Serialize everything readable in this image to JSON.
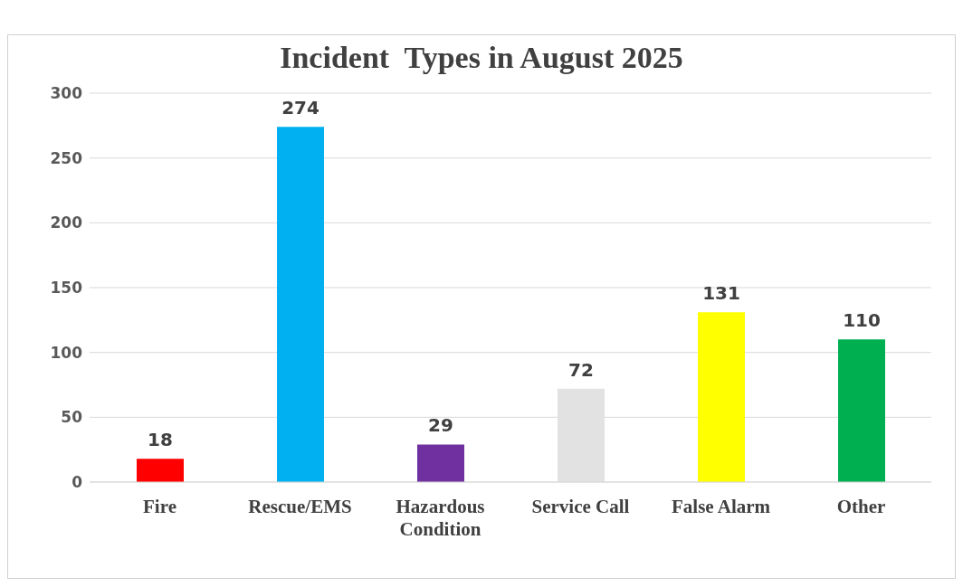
{
  "chart_data": {
    "type": "bar",
    "title": "Incident  Types in August 2025",
    "categories": [
      "Fire",
      "Rescue/EMS",
      "Hazardous Condition",
      "Service Call",
      "False Alarm",
      "Other"
    ],
    "values": [
      18,
      274,
      29,
      72,
      131,
      110
    ],
    "colors": [
      "#ff0000",
      "#00b0f0",
      "#7030a0",
      "#e2e2e2",
      "#ffff00",
      "#00b050"
    ],
    "ylim": [
      0,
      300
    ],
    "yticks": [
      0,
      50,
      100,
      150,
      200,
      250,
      300
    ],
    "grid": "y",
    "data_labels": true
  }
}
